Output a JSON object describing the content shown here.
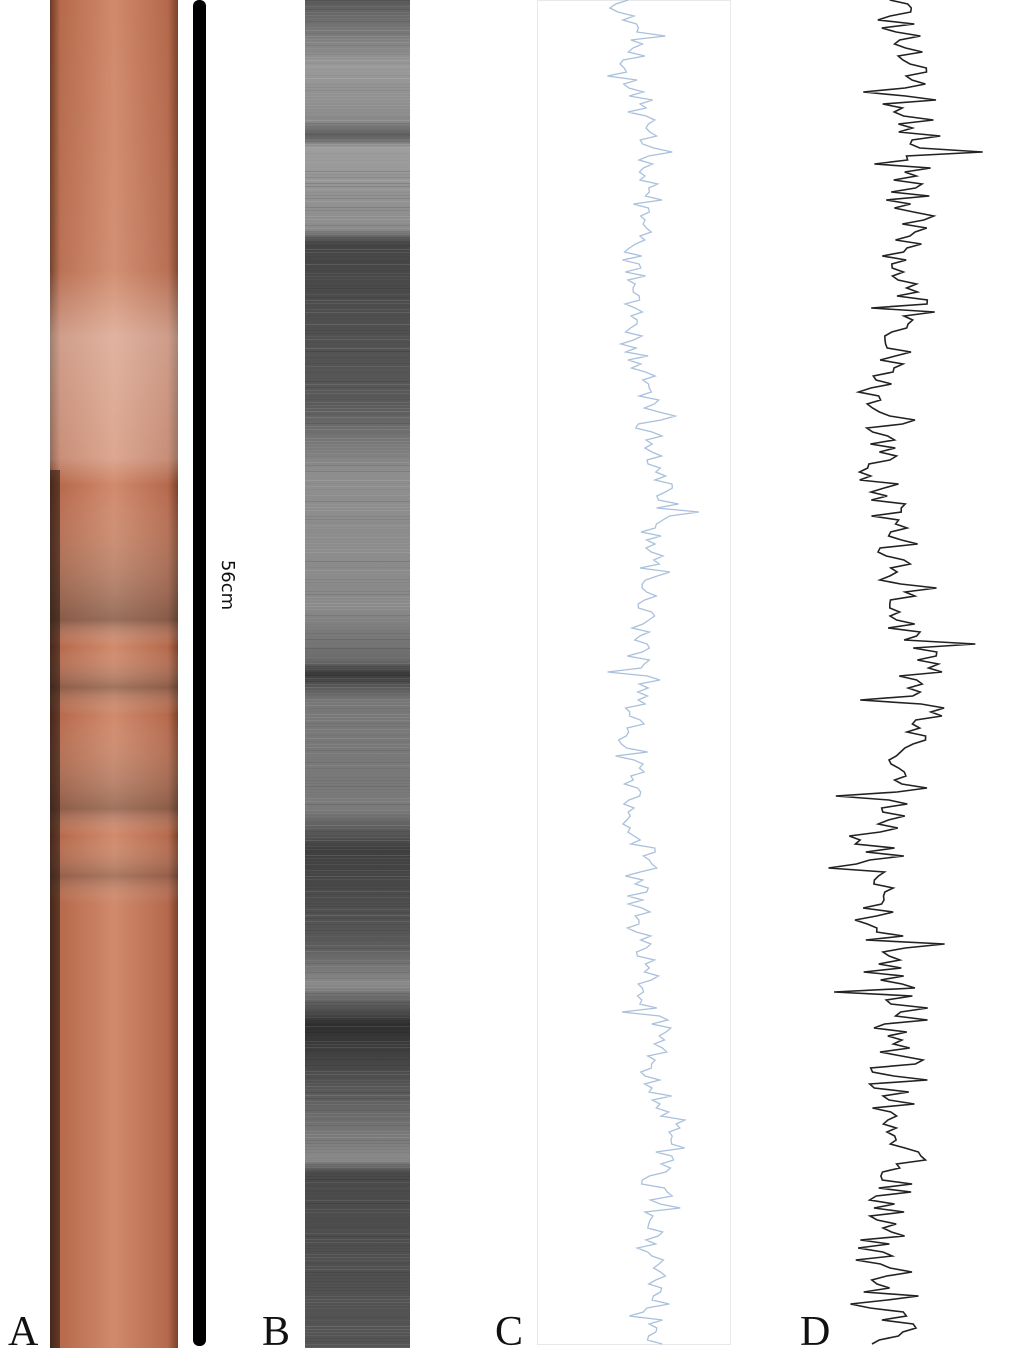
{
  "panels": [
    {
      "label": "A"
    },
    {
      "label": "B"
    },
    {
      "label": "C"
    },
    {
      "label": "D"
    }
  ],
  "scale_bar": {
    "label": "56cm"
  }
}
